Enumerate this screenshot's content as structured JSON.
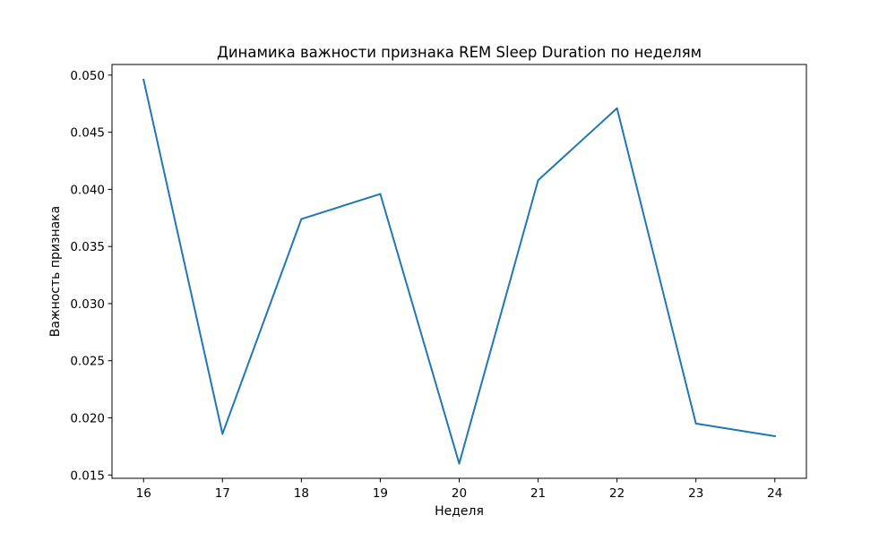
{
  "chart_data": {
    "type": "line",
    "title": "Динамика важности признака REM Sleep Duration по неделям",
    "xlabel": "Неделя",
    "ylabel": "Важность признака",
    "x": [
      16,
      17,
      18,
      19,
      20,
      21,
      22,
      23,
      24
    ],
    "series": [
      {
        "color": "#1f77b4",
        "values": [
          0.0496,
          0.0186,
          0.0374,
          0.0396,
          0.016,
          0.0408,
          0.0471,
          0.0195,
          0.0184
        ]
      }
    ],
    "xlim": [
      15.6,
      24.4
    ],
    "ylim": [
      0.01471,
      0.05093
    ],
    "xticks": [
      "16",
      "17",
      "18",
      "19",
      "20",
      "21",
      "22",
      "23",
      "24"
    ],
    "yticks": [
      "0.015",
      "0.020",
      "0.025",
      "0.030",
      "0.035",
      "0.040",
      "0.045",
      "0.050"
    ],
    "grid": false,
    "legend": "none"
  }
}
